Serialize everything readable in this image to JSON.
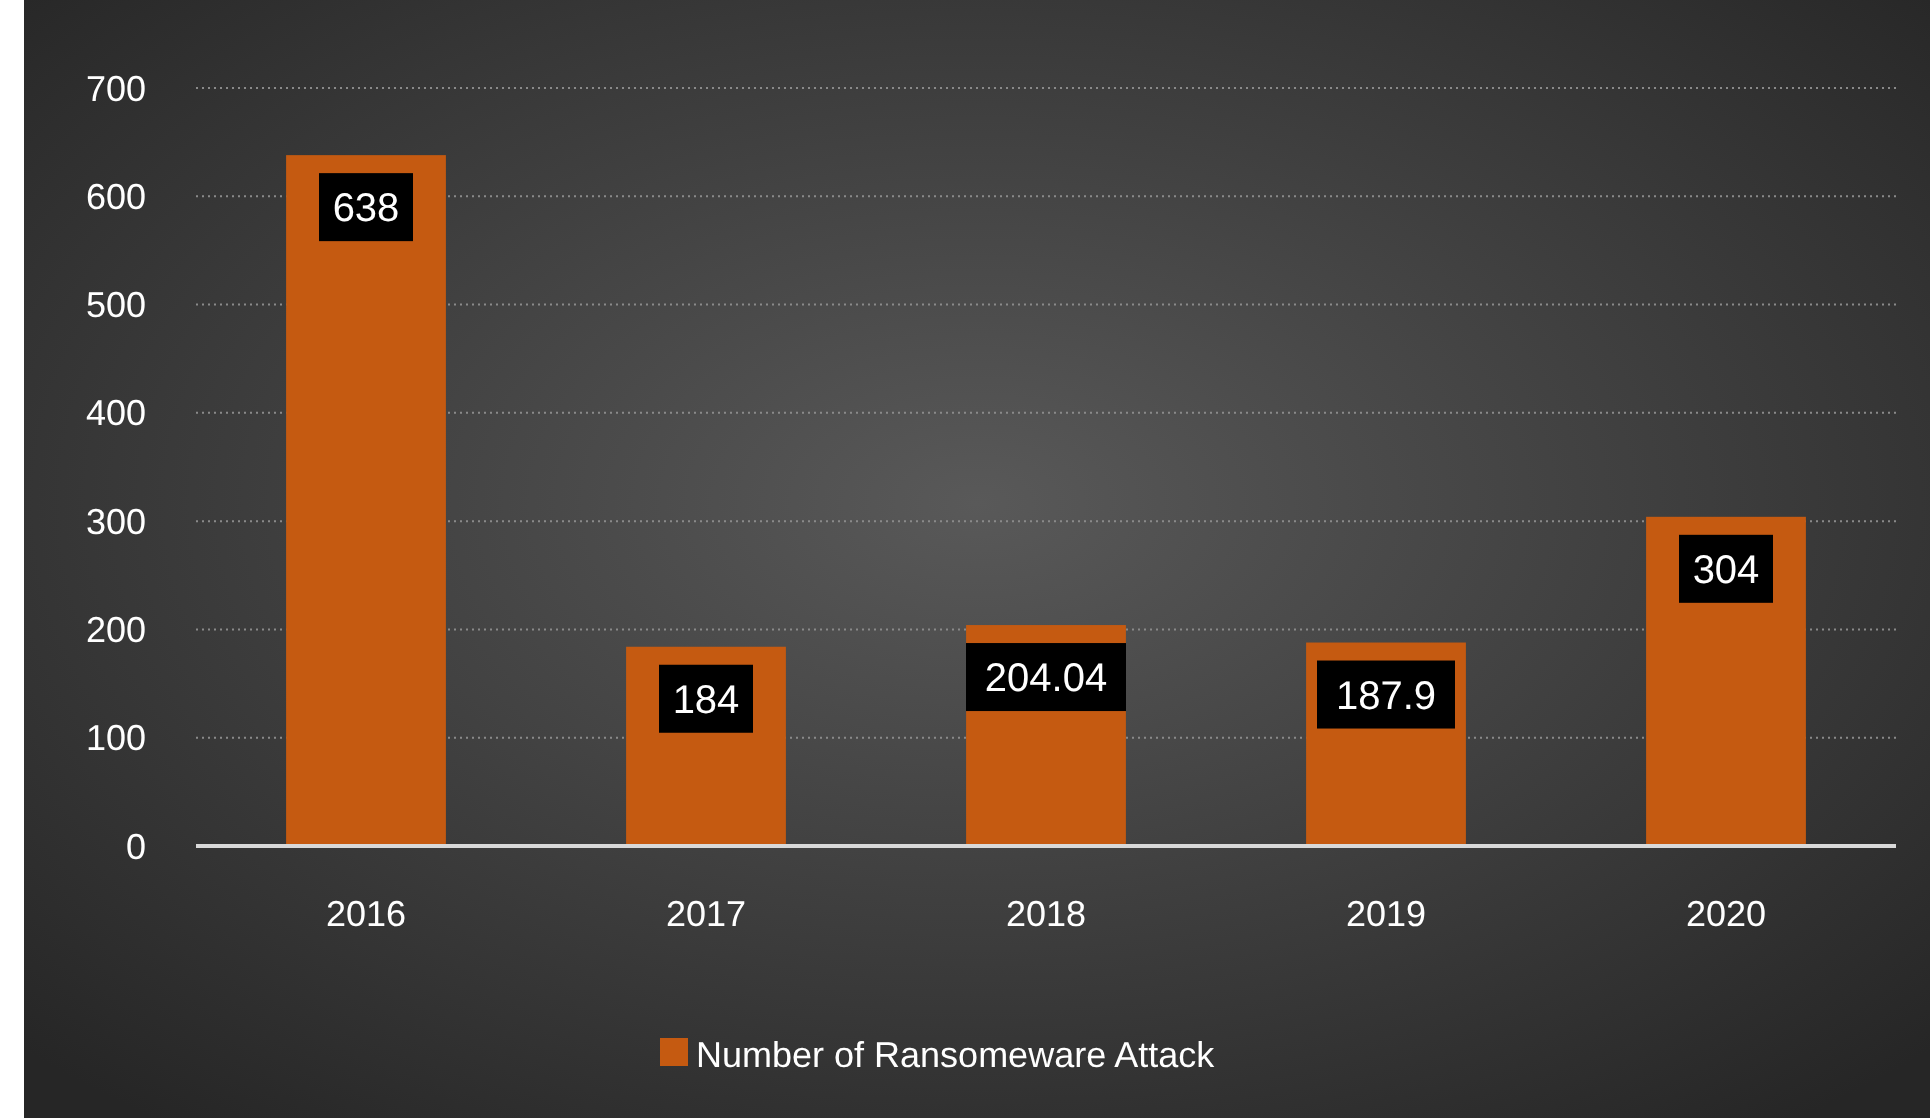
{
  "chart_data": {
    "type": "bar",
    "categories": [
      "2016",
      "2017",
      "2018",
      "2019",
      "2020"
    ],
    "series": [
      {
        "name": "Number of Ransomeware Attack",
        "color": "#c55a11",
        "values": [
          638,
          184,
          204.04,
          187.9,
          304
        ]
      }
    ],
    "ylim": [
      0,
      700
    ],
    "yticks": [
      0,
      100,
      200,
      300,
      400,
      500,
      600,
      700
    ],
    "grid": "y",
    "legend": "bottom",
    "data_labels": true
  }
}
